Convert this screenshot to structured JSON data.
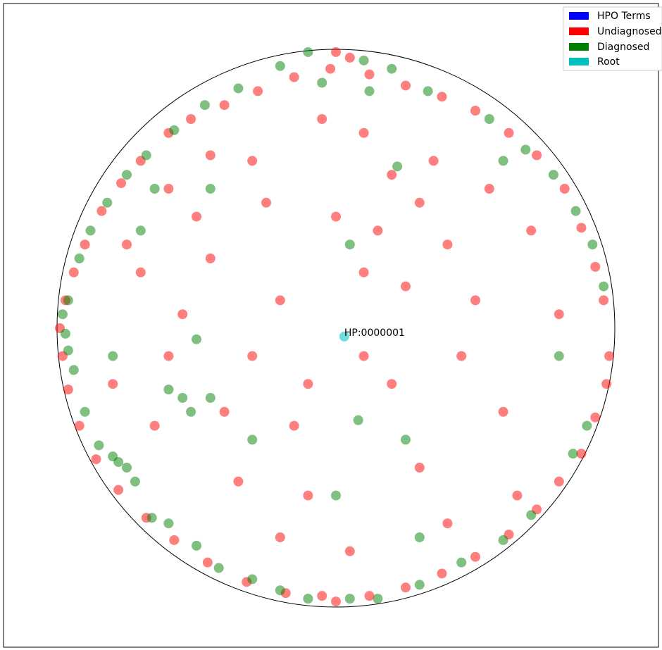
{
  "chart_data": {
    "type": "scatter",
    "title": "",
    "xlabel": "",
    "ylabel": "",
    "xlim": [
      -1.05,
      1.05
    ],
    "ylim": [
      -1.05,
      1.05
    ],
    "grid": false,
    "axes_visible": false,
    "boundary_circle": {
      "center": [
        0,
        0
      ],
      "radius": 1
    },
    "legend": {
      "placement": "top-right",
      "entries": [
        {
          "label": "HPO Terms",
          "color": "#0000ff"
        },
        {
          "label": "Undiagnosed",
          "color": "#ff0000"
        },
        {
          "label": "Diagnosed",
          "color": "#008000"
        },
        {
          "label": "Root",
          "color": "#00bfbf"
        }
      ]
    },
    "root": {
      "name": "HP:0000001",
      "x": 0.03,
      "y": -0.03
    },
    "series": [
      {
        "name": "Undiagnosed",
        "color": "#ff0000",
        "points": [
          [
            0.0,
            0.99
          ],
          [
            0.05,
            0.97
          ],
          [
            -0.02,
            0.93
          ],
          [
            -0.15,
            0.9
          ],
          [
            0.12,
            0.91
          ],
          [
            -0.28,
            0.85
          ],
          [
            0.25,
            0.87
          ],
          [
            -0.4,
            0.8
          ],
          [
            0.38,
            0.83
          ],
          [
            -0.52,
            0.75
          ],
          [
            0.5,
            0.78
          ],
          [
            -0.6,
            0.7
          ],
          [
            0.62,
            0.7
          ],
          [
            -0.7,
            0.6
          ],
          [
            0.72,
            0.62
          ],
          [
            -0.77,
            0.52
          ],
          [
            0.82,
            0.5
          ],
          [
            -0.84,
            0.42
          ],
          [
            0.88,
            0.36
          ],
          [
            -0.9,
            0.3
          ],
          [
            0.93,
            0.22
          ],
          [
            -0.94,
            0.2
          ],
          [
            0.96,
            0.1
          ],
          [
            -0.97,
            0.1
          ],
          [
            0.98,
            -0.1
          ],
          [
            -0.99,
            0.0
          ],
          [
            0.97,
            -0.2
          ],
          [
            -0.98,
            -0.1
          ],
          [
            0.93,
            -0.32
          ],
          [
            -0.96,
            -0.22
          ],
          [
            0.88,
            -0.45
          ],
          [
            -0.92,
            -0.35
          ],
          [
            0.8,
            -0.55
          ],
          [
            -0.86,
            -0.47
          ],
          [
            0.72,
            -0.65
          ],
          [
            -0.78,
            -0.58
          ],
          [
            0.62,
            -0.74
          ],
          [
            -0.68,
            -0.68
          ],
          [
            0.5,
            -0.82
          ],
          [
            -0.58,
            -0.76
          ],
          [
            0.38,
            -0.88
          ],
          [
            -0.46,
            -0.84
          ],
          [
            0.25,
            -0.93
          ],
          [
            -0.32,
            -0.91
          ],
          [
            0.12,
            -0.96
          ],
          [
            -0.18,
            -0.95
          ],
          [
            0.0,
            -0.98
          ],
          [
            -0.05,
            -0.96
          ],
          [
            -0.3,
            0.6
          ],
          [
            0.1,
            0.7
          ],
          [
            -0.5,
            0.4
          ],
          [
            0.4,
            0.3
          ],
          [
            -0.2,
            0.1
          ],
          [
            0.2,
            -0.2
          ],
          [
            -0.4,
            -0.3
          ],
          [
            0.3,
            -0.5
          ],
          [
            -0.1,
            -0.6
          ],
          [
            0.5,
            0.1
          ],
          [
            -0.6,
            -0.1
          ],
          [
            0.0,
            0.4
          ],
          [
            -0.3,
            -0.1
          ],
          [
            0.1,
            -0.1
          ],
          [
            0.35,
            0.6
          ],
          [
            -0.45,
            0.62
          ],
          [
            0.6,
            -0.3
          ],
          [
            -0.7,
            0.2
          ],
          [
            0.15,
            0.35
          ],
          [
            -0.15,
            -0.35
          ],
          [
            0.45,
            -0.1
          ],
          [
            -0.55,
            0.05
          ],
          [
            0.25,
            0.15
          ],
          [
            -0.05,
            0.75
          ],
          [
            0.7,
            0.35
          ],
          [
            -0.8,
            -0.2
          ],
          [
            0.05,
            -0.8
          ],
          [
            -0.25,
            0.45
          ],
          [
            0.55,
            0.5
          ],
          [
            -0.35,
            -0.55
          ],
          [
            0.2,
            0.55
          ],
          [
            -0.6,
            0.5
          ],
          [
            0.65,
            -0.6
          ],
          [
            -0.2,
            -0.75
          ],
          [
            0.4,
            -0.7
          ],
          [
            -0.75,
            0.3
          ],
          [
            0.8,
            0.05
          ],
          [
            -0.65,
            -0.35
          ],
          [
            0.1,
            0.2
          ],
          [
            -0.1,
            -0.2
          ],
          [
            0.3,
            0.45
          ],
          [
            -0.45,
            0.25
          ]
        ]
      },
      {
        "name": "Diagnosed",
        "color": "#008000",
        "points": [
          [
            -0.1,
            0.99
          ],
          [
            0.1,
            0.96
          ],
          [
            -0.2,
            0.94
          ],
          [
            0.2,
            0.93
          ],
          [
            -0.35,
            0.86
          ],
          [
            0.33,
            0.85
          ],
          [
            -0.47,
            0.8
          ],
          [
            0.55,
            0.75
          ],
          [
            -0.58,
            0.71
          ],
          [
            0.68,
            0.64
          ],
          [
            -0.68,
            0.62
          ],
          [
            0.78,
            0.55
          ],
          [
            -0.75,
            0.55
          ],
          [
            0.86,
            0.42
          ],
          [
            -0.82,
            0.45
          ],
          [
            0.92,
            0.3
          ],
          [
            -0.88,
            0.35
          ],
          [
            0.96,
            0.15
          ],
          [
            -0.92,
            0.25
          ],
          [
            -0.96,
            0.1
          ],
          [
            -0.98,
            0.05
          ],
          [
            -0.97,
            -0.02
          ],
          [
            -0.96,
            -0.08
          ],
          [
            -0.94,
            -0.15
          ],
          [
            -0.9,
            -0.3
          ],
          [
            -0.85,
            -0.42
          ],
          [
            -0.8,
            -0.46
          ],
          [
            -0.78,
            -0.48
          ],
          [
            -0.75,
            -0.5
          ],
          [
            -0.72,
            -0.55
          ],
          [
            -0.66,
            -0.68
          ],
          [
            -0.6,
            -0.7
          ],
          [
            -0.5,
            -0.78
          ],
          [
            -0.42,
            -0.86
          ],
          [
            -0.3,
            -0.9
          ],
          [
            -0.2,
            -0.94
          ],
          [
            -0.1,
            -0.97
          ],
          [
            0.05,
            -0.97
          ],
          [
            0.15,
            -0.97
          ],
          [
            0.3,
            -0.92
          ],
          [
            0.45,
            -0.84
          ],
          [
            0.6,
            -0.76
          ],
          [
            0.7,
            -0.67
          ],
          [
            0.85,
            -0.45
          ],
          [
            0.9,
            -0.35
          ],
          [
            -0.6,
            -0.22
          ],
          [
            -0.55,
            -0.25
          ],
          [
            -0.52,
            -0.3
          ],
          [
            -0.45,
            -0.25
          ],
          [
            -0.3,
            -0.4
          ],
          [
            0.0,
            -0.6
          ],
          [
            0.08,
            -0.33
          ],
          [
            0.25,
            -0.4
          ],
          [
            -0.65,
            0.5
          ],
          [
            -0.45,
            0.5
          ],
          [
            0.05,
            0.3
          ],
          [
            0.22,
            0.58
          ],
          [
            -0.7,
            0.35
          ],
          [
            -0.5,
            -0.04
          ],
          [
            -0.8,
            -0.1
          ],
          [
            0.6,
            0.6
          ],
          [
            0.8,
            -0.1
          ],
          [
            0.3,
            -0.75
          ],
          [
            -0.05,
            0.88
          ],
          [
            0.12,
            0.85
          ]
        ]
      }
    ]
  }
}
